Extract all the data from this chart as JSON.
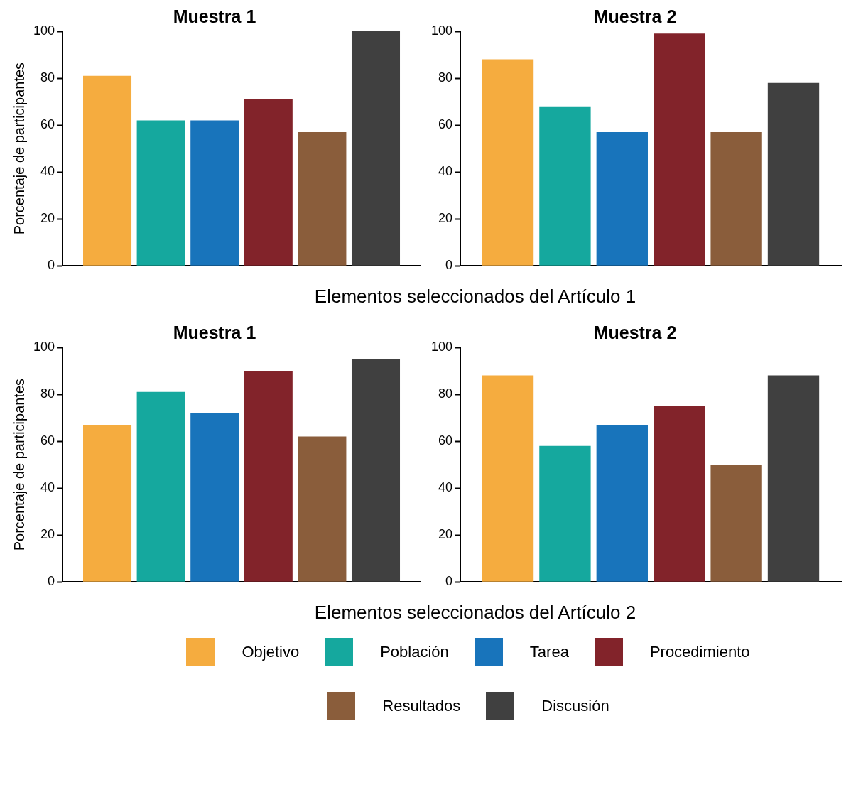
{
  "chart_data": [
    {
      "type": "bar",
      "title": "Muestra 1",
      "ylabel": "Porcentaje de participantes",
      "xlabel": "Elementos seleccionados del Artículo 1",
      "categories": [
        null
      ],
      "tick_labels": "y",
      "grid": false,
      "legend": "bottom",
      "ylim": [
        0,
        100
      ],
      "yticks": [
        0,
        20,
        40,
        60,
        80,
        100
      ],
      "series": [
        {
          "name": "Objetivo",
          "color": "#f5ac3f",
          "values": [
            81
          ]
        },
        {
          "name": "Población",
          "color": "#15a89e",
          "values": [
            62
          ]
        },
        {
          "name": "Tarea",
          "color": "#1874bb",
          "values": [
            62
          ]
        },
        {
          "name": "Procedimiento",
          "color": "#82232a",
          "values": [
            71
          ]
        },
        {
          "name": "Resultados",
          "color": "#8a5d3b",
          "values": [
            57
          ]
        },
        {
          "name": "Discusión",
          "color": "#404040",
          "values": [
            100
          ]
        }
      ]
    },
    {
      "type": "bar",
      "title": "Muestra 2",
      "categories": [
        null
      ],
      "tick_labels": "y",
      "grid": false,
      "ylim": [
        0,
        100
      ],
      "yticks": [
        0,
        20,
        40,
        60,
        80,
        100
      ],
      "series": [
        {
          "color": "#f5ac3f",
          "values": [
            88
          ]
        },
        {
          "color": "#15a89e",
          "values": [
            68
          ]
        },
        {
          "color": "#1874bb",
          "values": [
            57
          ]
        },
        {
          "color": "#82232a",
          "values": [
            99
          ]
        },
        {
          "color": "#8a5d3b",
          "values": [
            57
          ]
        },
        {
          "color": "#404040",
          "values": [
            78
          ]
        }
      ]
    },
    {
      "type": "bar",
      "title": "Muestra 1",
      "ylabel": "Porcentaje de participantes",
      "xlabel": "Elementos seleccionados del Artículo 2",
      "categories": [
        null
      ],
      "tick_labels": "y",
      "grid": false,
      "ylim": [
        0,
        100
      ],
      "yticks": [
        0,
        20,
        40,
        60,
        80,
        100
      ],
      "series": [
        {
          "color": "#f5ac3f",
          "values": [
            67
          ]
        },
        {
          "color": "#15a89e",
          "values": [
            81
          ]
        },
        {
          "color": "#1874bb",
          "values": [
            72
          ]
        },
        {
          "color": "#82232a",
          "values": [
            90
          ]
        },
        {
          "color": "#8a5d3b",
          "values": [
            62
          ]
        },
        {
          "color": "#404040",
          "values": [
            95
          ]
        }
      ]
    },
    {
      "type": "bar",
      "title": "Muestra 2",
      "categories": [
        null
      ],
      "tick_labels": "y",
      "grid": false,
      "ylim": [
        0,
        100
      ],
      "yticks": [
        0,
        20,
        40,
        60,
        80,
        100
      ],
      "series": [
        {
          "color": "#f5ac3f",
          "values": [
            88
          ]
        },
        {
          "color": "#15a89e",
          "values": [
            58
          ]
        },
        {
          "color": "#1874bb",
          "values": [
            67
          ]
        },
        {
          "color": "#82232a",
          "values": [
            75
          ]
        },
        {
          "color": "#8a5d3b",
          "values": [
            50
          ]
        },
        {
          "color": "#404040",
          "values": [
            88
          ]
        }
      ]
    }
  ]
}
